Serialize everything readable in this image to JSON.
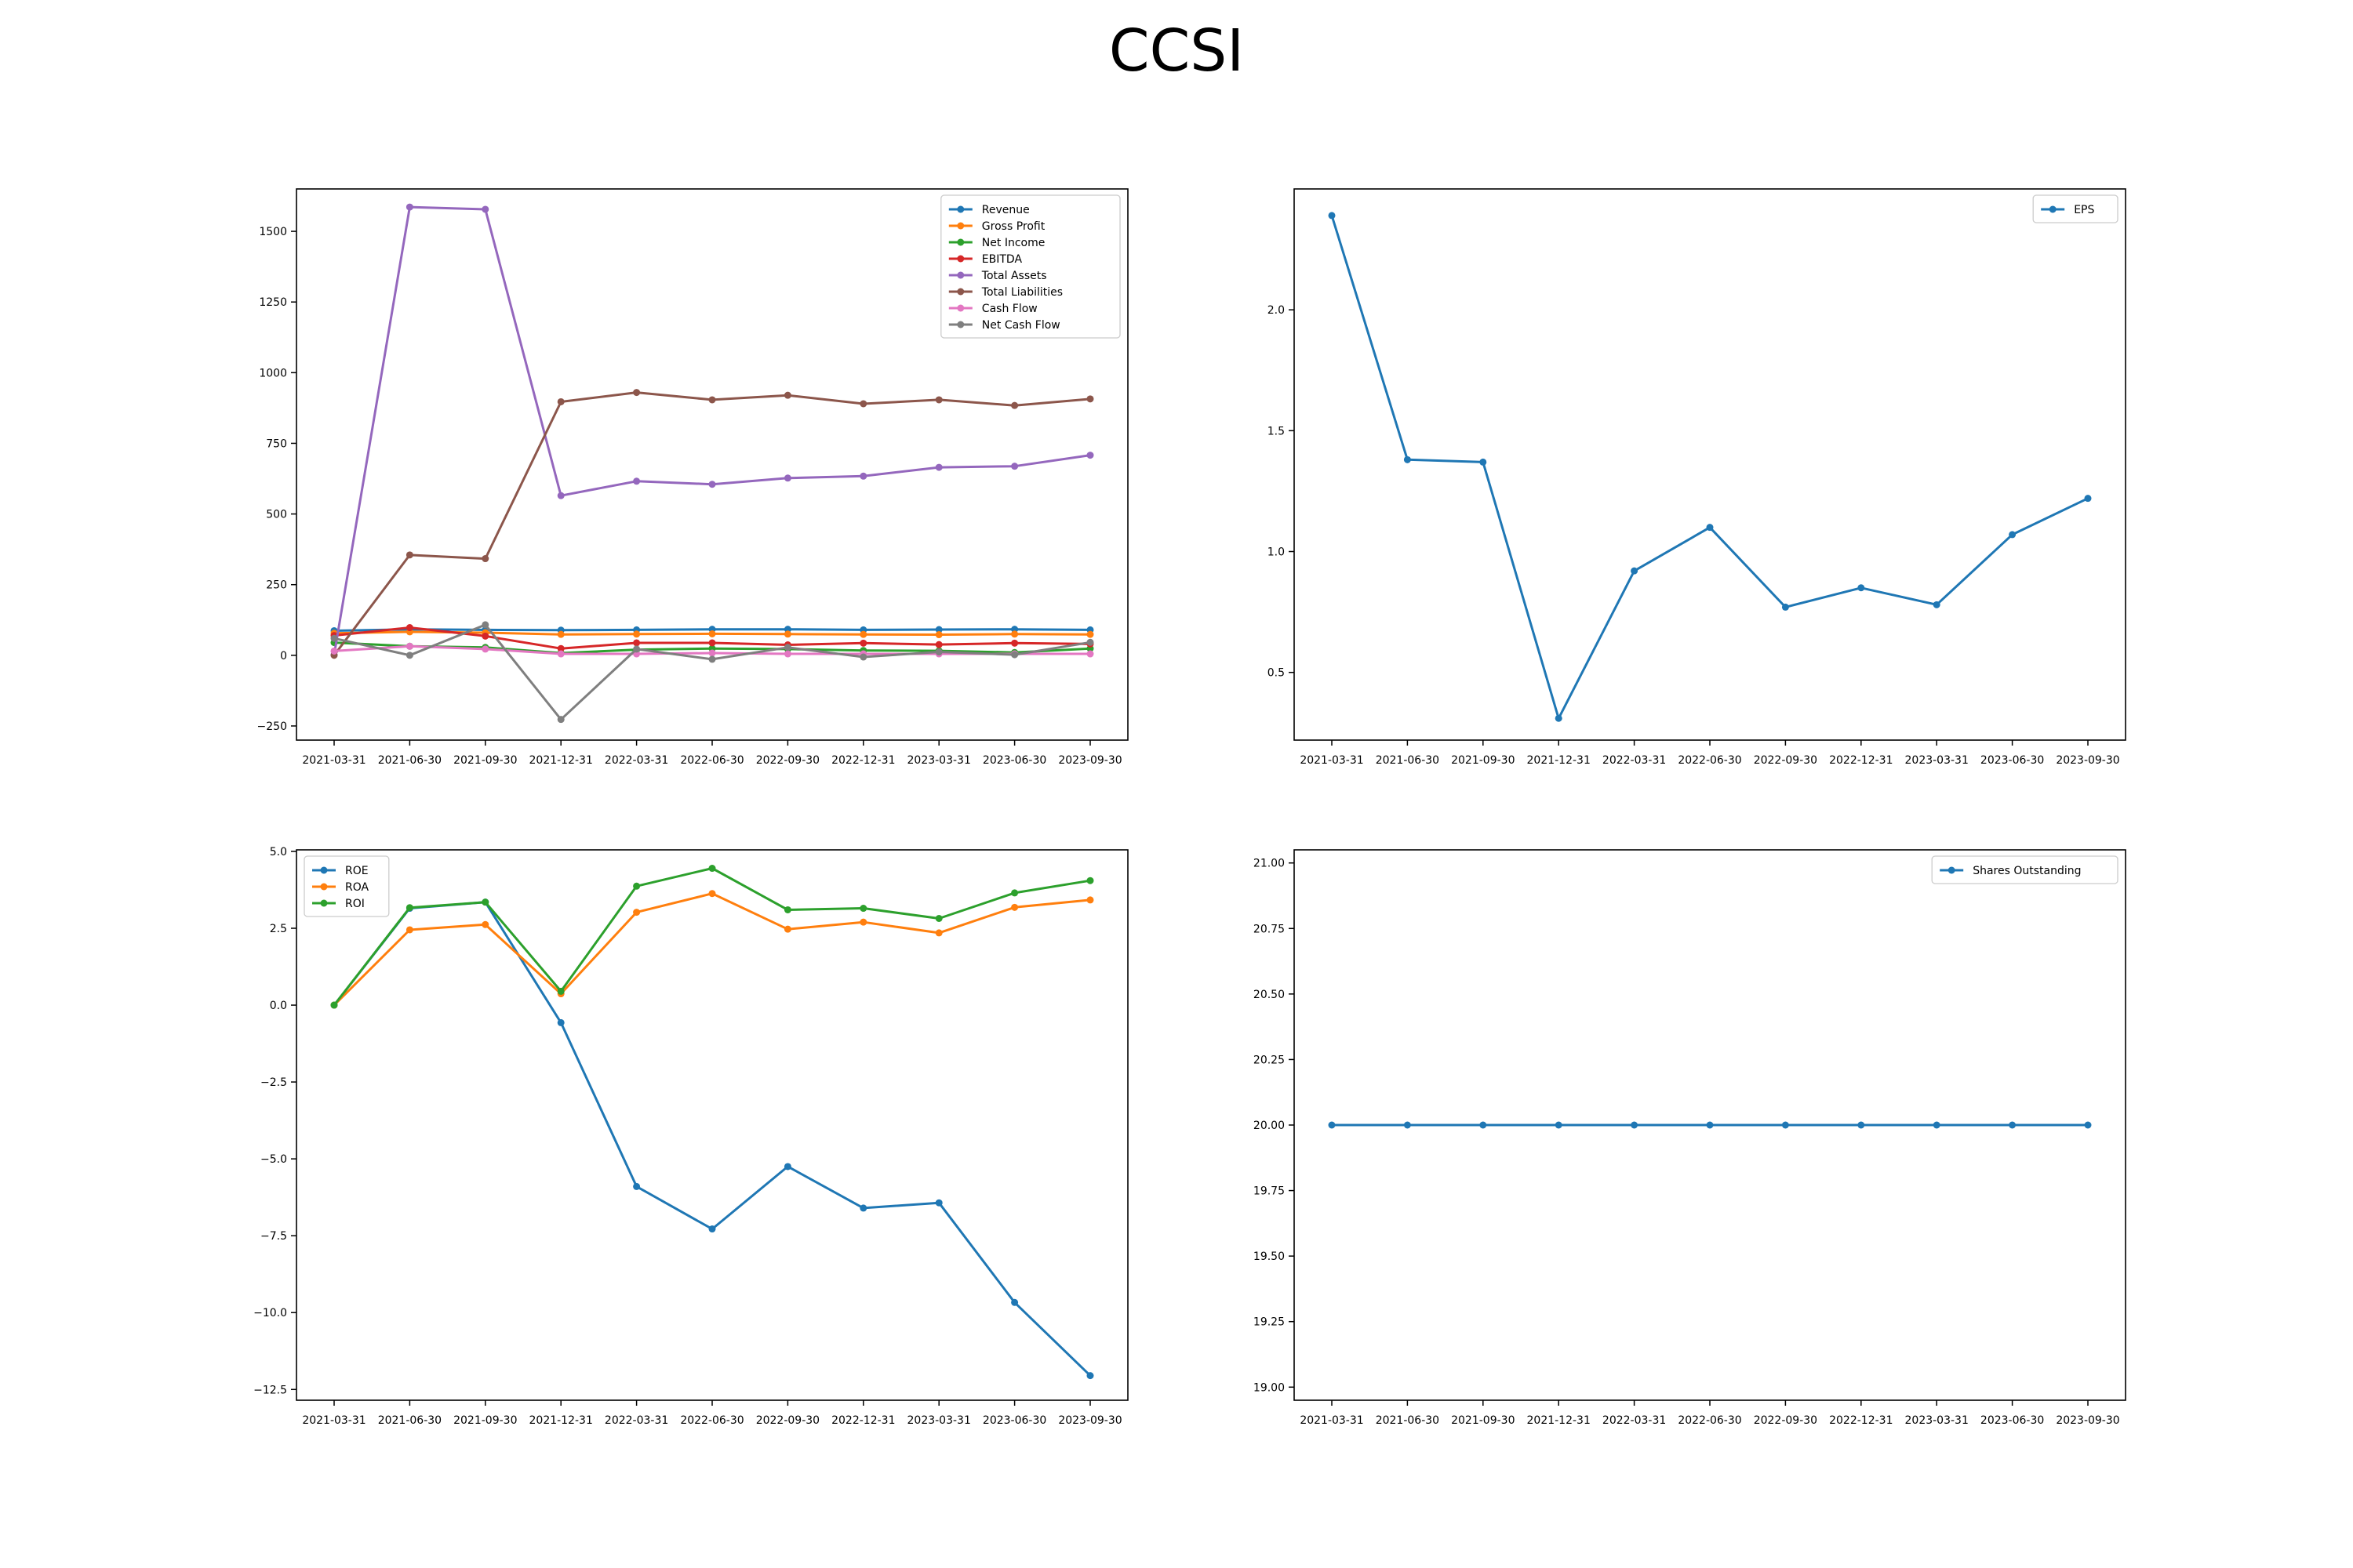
{
  "title": "CCSI",
  "chart_data": [
    {
      "type": "line",
      "categories": [
        "2021-03-31",
        "2021-06-30",
        "2021-09-30",
        "2021-12-31",
        "2022-03-31",
        "2022-06-30",
        "2022-09-30",
        "2022-12-31",
        "2023-03-31",
        "2023-06-30",
        "2023-09-30"
      ],
      "ylim": [
        -300,
        1650
      ],
      "yticks": [
        -250,
        0,
        250,
        500,
        750,
        1000,
        1250,
        1500
      ],
      "ytick_labels": [
        "−250",
        "0",
        "250",
        "500",
        "750",
        "1000",
        "1250",
        "1500"
      ],
      "legend_position": "top-right",
      "grid": false,
      "series": [
        {
          "name": "Revenue",
          "color": "#1f77b4",
          "values": [
            87,
            92,
            90,
            89,
            90,
            92,
            92,
            90,
            91,
            92,
            90
          ]
        },
        {
          "name": "Gross Profit",
          "color": "#ff7f0e",
          "values": [
            78,
            83,
            80,
            74,
            75,
            76,
            75,
            74,
            73,
            75,
            74
          ]
        },
        {
          "name": "Net Income",
          "color": "#2ca02c",
          "values": [
            45,
            32,
            28,
            8,
            20,
            24,
            22,
            17,
            16,
            10,
            24
          ]
        },
        {
          "name": "EBITDA",
          "color": "#d62728",
          "values": [
            70,
            98,
            68,
            24,
            44,
            44,
            37,
            43,
            38,
            43,
            40
          ]
        },
        {
          "name": "Total Assets",
          "color": "#9467bd",
          "values": [
            2,
            1586,
            1578,
            565,
            616,
            605,
            627,
            634,
            665,
            669,
            708
          ]
        },
        {
          "name": "Total Liabilities",
          "color": "#8c564b",
          "values": [
            0,
            355,
            342,
            897,
            930,
            904,
            920,
            890,
            904,
            884,
            907
          ]
        },
        {
          "name": "Cash Flow",
          "color": "#e377c2",
          "values": [
            15,
            32,
            22,
            5,
            5,
            8,
            5,
            5,
            5,
            5,
            5
          ]
        },
        {
          "name": "Net Cash Flow",
          "color": "#7f7f7f",
          "values": [
            60,
            0,
            108,
            -227,
            22,
            -14,
            28,
            -6,
            12,
            2,
            46
          ]
        }
      ]
    },
    {
      "type": "line",
      "categories": [
        "2021-03-31",
        "2021-06-30",
        "2021-09-30",
        "2021-12-31",
        "2022-03-31",
        "2022-06-30",
        "2022-09-30",
        "2022-12-31",
        "2023-03-31",
        "2023-06-30",
        "2023-09-30"
      ],
      "ylim": [
        0.22,
        2.5
      ],
      "yticks": [
        0.5,
        1.0,
        1.5,
        2.0
      ],
      "ytick_labels": [
        "0.5",
        "1.0",
        "1.5",
        "2.0"
      ],
      "legend_position": "top-right",
      "grid": false,
      "series": [
        {
          "name": "EPS",
          "color": "#1f77b4",
          "values": [
            2.39,
            1.38,
            1.37,
            0.31,
            0.92,
            1.1,
            0.77,
            0.85,
            0.78,
            1.07,
            1.22
          ]
        }
      ]
    },
    {
      "type": "line",
      "categories": [
        "2021-03-31",
        "2021-06-30",
        "2021-09-30",
        "2021-12-31",
        "2022-03-31",
        "2022-06-30",
        "2022-09-30",
        "2022-12-31",
        "2023-03-31",
        "2023-06-30",
        "2023-09-30"
      ],
      "ylim": [
        -12.85,
        5.05
      ],
      "yticks": [
        -12.5,
        -10.0,
        -7.5,
        -5.0,
        -2.5,
        0.0,
        2.5,
        5.0
      ],
      "ytick_labels": [
        "−12.5",
        "−10.0",
        "−7.5",
        "−5.0",
        "−2.5",
        "0.0",
        "2.5",
        "5.0"
      ],
      "legend_position": "top-left",
      "grid": false,
      "series": [
        {
          "name": "ROE",
          "color": "#1f77b4",
          "values": [
            0.0,
            3.15,
            3.35,
            -0.57,
            -5.9,
            -7.28,
            -5.25,
            -6.6,
            -6.43,
            -9.67,
            -12.05
          ]
        },
        {
          "name": "ROA",
          "color": "#ff7f0e",
          "values": [
            0.0,
            2.45,
            2.62,
            0.37,
            3.02,
            3.63,
            2.47,
            2.7,
            2.35,
            3.18,
            3.42
          ]
        },
        {
          "name": "ROI",
          "color": "#2ca02c",
          "values": [
            0.0,
            3.17,
            3.35,
            0.45,
            3.87,
            4.45,
            3.1,
            3.15,
            2.82,
            3.65,
            4.05
          ]
        }
      ]
    },
    {
      "type": "line",
      "categories": [
        "2021-03-31",
        "2021-06-30",
        "2021-09-30",
        "2021-12-31",
        "2022-03-31",
        "2022-06-30",
        "2022-09-30",
        "2022-12-31",
        "2023-03-31",
        "2023-06-30",
        "2023-09-30"
      ],
      "ylim": [
        18.95,
        21.05
      ],
      "yticks": [
        19.0,
        19.25,
        19.5,
        19.75,
        20.0,
        20.25,
        20.5,
        20.75,
        21.0
      ],
      "ytick_labels": [
        "19.00",
        "19.25",
        "19.50",
        "19.75",
        "20.00",
        "20.25",
        "20.50",
        "20.75",
        "21.00"
      ],
      "legend_position": "top-right",
      "grid": false,
      "series": [
        {
          "name": "Shares Outstanding",
          "color": "#1f77b4",
          "values": [
            20,
            20,
            20,
            20,
            20,
            20,
            20,
            20,
            20,
            20,
            20
          ]
        }
      ]
    }
  ]
}
